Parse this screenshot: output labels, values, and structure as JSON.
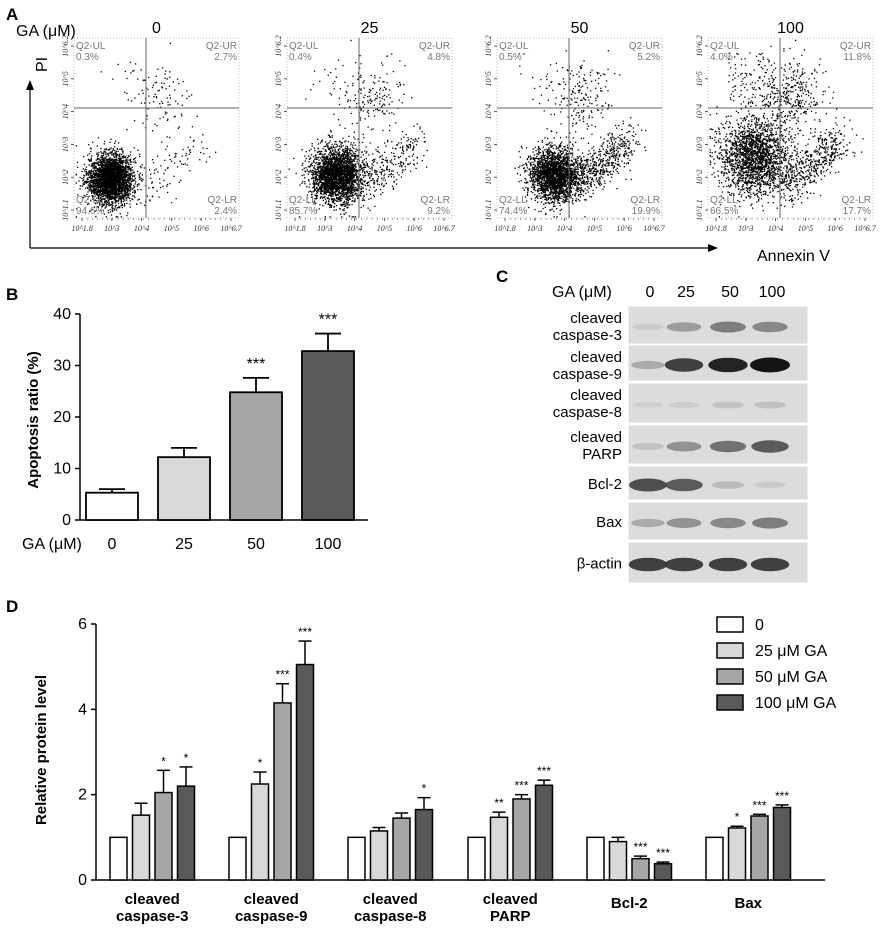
{
  "panel_labels": {
    "a": "A",
    "b": "B",
    "c": "C",
    "d": "D"
  },
  "colors": {
    "c0": "#ffffff",
    "c25": "#d9d9d9",
    "c50": "#a6a6a6",
    "c100": "#595959",
    "axis": "#000000",
    "blot_bg": "#dcdcdc"
  },
  "chart_data": [
    {
      "type": "scatter",
      "panel": "A",
      "title": "Annexin V / PI flow cytometry",
      "group_label": "GA (μM)",
      "xlabel": "Annexin V",
      "ylabel": "PI",
      "x_ticks": [
        "10^1.8",
        "10^3",
        "10^4",
        "10^5",
        "10^6",
        "10^6.7"
      ],
      "y_ticks": [
        "10^1.1",
        "10^2",
        "10^3",
        "10^4",
        "10^5",
        "10^6.2"
      ],
      "plots": [
        {
          "dose": "0",
          "quadrants": [
            {
              "name": "Q2-UL",
              "value": "0.3%"
            },
            {
              "name": "Q2-UR",
              "value": "2.7%"
            },
            {
              "name": "Q2-LL",
              "value": "94.6%"
            },
            {
              "name": "Q2-LR",
              "value": "2.4%"
            }
          ]
        },
        {
          "dose": "25",
          "quadrants": [
            {
              "name": "Q2-UL",
              "value": "0.4%"
            },
            {
              "name": "Q2-UR",
              "value": "4.8%"
            },
            {
              "name": "Q2-LL",
              "value": "85.7%"
            },
            {
              "name": "Q2-LR",
              "value": "9.2%"
            }
          ]
        },
        {
          "dose": "50",
          "quadrants": [
            {
              "name": "Q2-UL",
              "value": "0.5%"
            },
            {
              "name": "Q2-UR",
              "value": "5.2%"
            },
            {
              "name": "Q2-LL",
              "value": "74.4%"
            },
            {
              "name": "Q2-LR",
              "value": "19.9%"
            }
          ]
        },
        {
          "dose": "100",
          "quadrants": [
            {
              "name": "Q2-UL",
              "value": "4.0%"
            },
            {
              "name": "Q2-UR",
              "value": "11.8%"
            },
            {
              "name": "Q2-LL",
              "value": "66.5%"
            },
            {
              "name": "Q2-LR",
              "value": "17.7%"
            }
          ]
        }
      ]
    },
    {
      "type": "bar",
      "panel": "B",
      "ylabel": "Apoptosis ratio (%)",
      "xlabel": "GA (μM)",
      "categories": [
        "0",
        "25",
        "50",
        "100"
      ],
      "values": [
        5.3,
        12.2,
        24.8,
        32.8
      ],
      "errors": [
        0.7,
        1.8,
        2.8,
        3.4
      ],
      "significance": [
        "",
        "",
        "***",
        "***"
      ],
      "ylim": [
        0,
        40
      ],
      "y_ticks": [
        "0",
        "10",
        "20",
        "30",
        "40"
      ]
    },
    {
      "type": "table",
      "panel": "C",
      "title": "Western blot",
      "group_label": "GA (μM)",
      "lanes": [
        "0",
        "25",
        "50",
        "100"
      ],
      "rows": [
        {
          "label": [
            "cleaved",
            "caspase-3"
          ],
          "intensities": [
            0.12,
            0.45,
            0.6,
            0.55
          ]
        },
        {
          "label": [
            "cleaved",
            "caspase-9"
          ],
          "intensities": [
            0.35,
            0.85,
            0.95,
            1.0
          ]
        },
        {
          "label": [
            "cleaved",
            "caspase-8"
          ],
          "intensities": [
            0.06,
            0.1,
            0.18,
            0.2
          ]
        },
        {
          "label": [
            "cleaved",
            "PARP"
          ],
          "intensities": [
            0.2,
            0.5,
            0.65,
            0.75
          ]
        },
        {
          "label": [
            "Bcl-2"
          ],
          "intensities": [
            0.8,
            0.75,
            0.25,
            0.12
          ]
        },
        {
          "label": [
            "Bax"
          ],
          "intensities": [
            0.35,
            0.5,
            0.55,
            0.6
          ]
        },
        {
          "label": [
            "β-actin"
          ],
          "intensities": [
            0.85,
            0.85,
            0.85,
            0.85
          ]
        }
      ]
    },
    {
      "type": "bar",
      "panel": "D",
      "ylabel": "Relative protein level",
      "categories": [
        [
          "cleaved",
          "caspase-3"
        ],
        [
          "cleaved",
          "caspase-9"
        ],
        [
          "cleaved",
          "caspase-8"
        ],
        [
          "cleaved",
          "PARP"
        ],
        [
          "Bcl-2"
        ],
        [
          "Bax"
        ]
      ],
      "ylim": [
        0,
        6
      ],
      "y_ticks": [
        "0",
        "2",
        "4",
        "6"
      ],
      "series": [
        {
          "name": "0",
          "values": [
            1.0,
            1.0,
            1.0,
            1.0,
            1.0,
            1.0
          ],
          "errors": [
            0,
            0,
            0,
            0,
            0,
            0
          ],
          "significance": [
            "",
            "",
            "",
            "",
            "",
            ""
          ]
        },
        {
          "name": "25 μM GA",
          "values": [
            1.52,
            2.25,
            1.15,
            1.47,
            0.9,
            1.22
          ],
          "errors": [
            0.28,
            0.28,
            0.08,
            0.12,
            0.1,
            0.04
          ],
          "significance": [
            "",
            "*",
            "",
            "**",
            "",
            "*"
          ]
        },
        {
          "name": "50 μM GA",
          "values": [
            2.05,
            4.15,
            1.45,
            1.9,
            0.5,
            1.5
          ],
          "errors": [
            0.52,
            0.45,
            0.12,
            0.1,
            0.06,
            0.04
          ],
          "significance": [
            "*",
            "***",
            "",
            "***",
            "***",
            "***"
          ]
        },
        {
          "name": "100 μM GA",
          "values": [
            2.2,
            5.05,
            1.65,
            2.22,
            0.38,
            1.7
          ],
          "errors": [
            0.45,
            0.55,
            0.28,
            0.12,
            0.04,
            0.06
          ],
          "significance": [
            "*",
            "***",
            "*",
            "***",
            "***",
            "***"
          ]
        }
      ]
    }
  ]
}
